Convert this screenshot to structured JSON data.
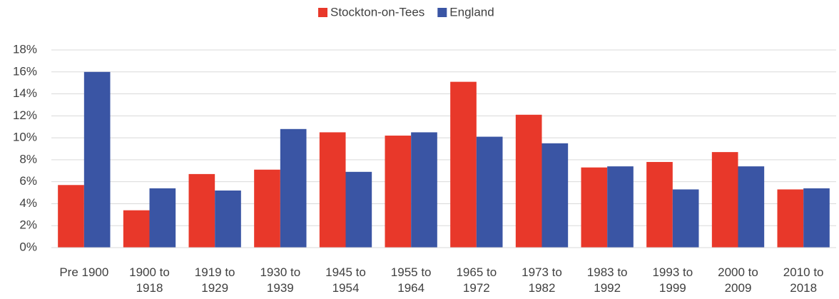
{
  "chart_data": {
    "type": "bar",
    "categories": [
      "Pre 1900",
      "1900 to 1918",
      "1919 to 1929",
      "1930 to 1939",
      "1945 to 1954",
      "1955 to 1964",
      "1965 to 1972",
      "1973 to 1982",
      "1983 to 1992",
      "1993 to 1999",
      "2000 to 2009",
      "2010 to 2018"
    ],
    "series": [
      {
        "name": "Stockton-on-Tees",
        "color": "#e8382a",
        "values": [
          5.7,
          3.4,
          6.7,
          7.1,
          10.5,
          10.2,
          15.1,
          12.1,
          7.3,
          7.8,
          8.7,
          5.3
        ]
      },
      {
        "name": "England",
        "color": "#3a55a4",
        "values": [
          16.0,
          5.4,
          5.2,
          10.8,
          6.9,
          10.5,
          10.1,
          9.5,
          7.4,
          5.3,
          7.4,
          5.4
        ]
      }
    ],
    "ylim": [
      0,
      18
    ],
    "yticks": [
      {
        "value": 0,
        "label": "0%"
      },
      {
        "value": 2,
        "label": "2%"
      },
      {
        "value": 4,
        "label": "4%"
      },
      {
        "value": 6,
        "label": "6%"
      },
      {
        "value": 8,
        "label": "8%"
      },
      {
        "value": 10,
        "label": "10%"
      },
      {
        "value": 12,
        "label": "12%"
      },
      {
        "value": 14,
        "label": "14%"
      },
      {
        "value": 16,
        "label": "16%"
      },
      {
        "value": 18,
        "label": "18%"
      }
    ],
    "grid": true,
    "legend": "top"
  }
}
